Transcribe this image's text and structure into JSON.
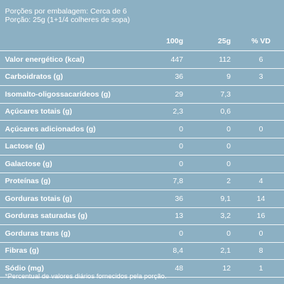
{
  "header": {
    "servings": "Porções por embalagem: Cerca de 6",
    "portion": "Porção: 25g (1+1/4 colheres de sopa)"
  },
  "table": {
    "columns": [
      "",
      "100g",
      "25g",
      "% VD"
    ],
    "rows": [
      {
        "label": "Valor energético (kcal)",
        "v100": "447",
        "v25": "112",
        "vd": "6"
      },
      {
        "label": "Carboidratos (g)",
        "v100": "36",
        "v25": "9",
        "vd": "3"
      },
      {
        "label": "Isomalto-oligossacarídeos (g)",
        "v100": "29",
        "v25": "7,3",
        "vd": ""
      },
      {
        "label": "Açúcares totais (g)",
        "v100": "2,3",
        "v25": "0,6",
        "vd": ""
      },
      {
        "label": "Açúcares adicionados (g)",
        "v100": "0",
        "v25": "0",
        "vd": "0"
      },
      {
        "label": "Lactose (g)",
        "v100": "0",
        "v25": "0",
        "vd": ""
      },
      {
        "label": "Galactose (g)",
        "v100": "0",
        "v25": "0",
        "vd": ""
      },
      {
        "label": "Proteínas (g)",
        "v100": "7,8",
        "v25": "2",
        "vd": "4"
      },
      {
        "label": "Gorduras totais (g)",
        "v100": "36",
        "v25": "9,1",
        "vd": "14"
      },
      {
        "label": "Gorduras saturadas (g)",
        "v100": "13",
        "v25": "3,2",
        "vd": "16"
      },
      {
        "label": "Gorduras trans (g)",
        "v100": "0",
        "v25": "0",
        "vd": "0"
      },
      {
        "label": "Fibras (g)",
        "v100": "8,4",
        "v25": "2,1",
        "vd": "8"
      },
      {
        "label": "Sódio (mg)",
        "v100": "48",
        "v25": "12",
        "vd": "1"
      }
    ]
  },
  "footnote": "*Percentual de valores diários fornecidos pela porção.",
  "colors": {
    "background": "#8cb0c3",
    "text": "#ffffff"
  }
}
